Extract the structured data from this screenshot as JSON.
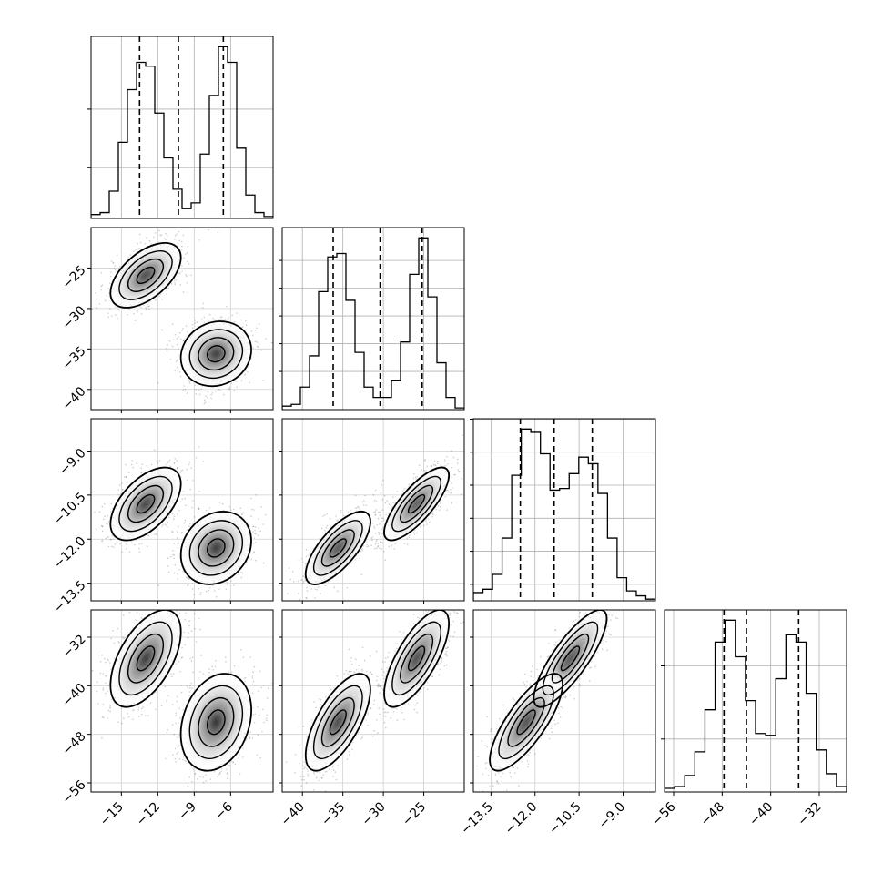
{
  "chart_data": {
    "type": "corner",
    "title": "",
    "variables": [
      {
        "index": 0,
        "range": [
          -17.5,
          -2.5
        ],
        "ticks": [
          -15,
          -12,
          -9,
          -6
        ],
        "tick_labels": [
          "−15",
          "−12",
          "−9",
          "−6"
        ],
        "quantiles": [
          -13.5,
          -10.3,
          -6.6
        ]
      },
      {
        "index": 1,
        "range": [
          -42.5,
          -20.0
        ],
        "ticks": [
          -40,
          -35,
          -30,
          -25
        ],
        "tick_labels": [
          "−40",
          "−35",
          "−30",
          "−25"
        ],
        "quantiles": [
          -36.2,
          -30.4,
          -25.2
        ]
      },
      {
        "index": 2,
        "range": [
          -14.1,
          -7.9
        ],
        "ticks": [
          -13.5,
          -12.0,
          -10.5,
          -9.0
        ],
        "tick_labels": [
          "−13.5",
          "−12.0",
          "−10.5",
          "−9.0"
        ],
        "quantiles": [
          -12.5,
          -11.35,
          -10.05
        ]
      },
      {
        "index": 3,
        "range": [
          -57.5,
          -27.5
        ],
        "ticks": [
          -56,
          -48,
          -40,
          -32
        ],
        "tick_labels": [
          "−56",
          "−48",
          "−40",
          "−32"
        ],
        "quantiles": [
          -47.7,
          -44.0,
          -35.4
        ]
      }
    ],
    "histograms": [
      {
        "variable": 0,
        "counts": [
          0.2,
          0.3,
          1.4,
          3.9,
          6.6,
          8.0,
          7.8,
          5.4,
          3.1,
          1.5,
          0.5,
          0.8,
          3.3,
          6.3,
          8.8,
          8.0,
          3.6,
          1.2,
          0.3,
          0.1
        ]
      },
      {
        "variable": 1,
        "counts": [
          0.2,
          0.3,
          1.3,
          3.1,
          6.8,
          8.8,
          9.0,
          6.3,
          3.3,
          1.3,
          0.7,
          0.7,
          1.7,
          3.9,
          7.8,
          9.9,
          6.5,
          2.7,
          0.7,
          0.1
        ]
      },
      {
        "variable": 2,
        "counts": [
          0.5,
          0.7,
          1.6,
          3.8,
          7.6,
          10.4,
          10.2,
          8.9,
          6.7,
          6.8,
          7.7,
          8.7,
          8.3,
          6.5,
          3.8,
          1.4,
          0.6,
          0.3,
          0.1
        ]
      },
      {
        "variable": 3,
        "counts": [
          0.2,
          0.3,
          0.9,
          2.2,
          4.5,
          8.2,
          9.4,
          7.4,
          5.0,
          3.2,
          3.1,
          6.2,
          8.6,
          8.2,
          5.4,
          2.3,
          1.0,
          0.3
        ]
      }
    ],
    "histogram_y_ticks": [
      {
        "variable": 0,
        "values": [
          2.6,
          5.6
        ]
      },
      {
        "variable": 1,
        "values": [
          2.2,
          3.8,
          5.4,
          7.0,
          8.6
        ]
      },
      {
        "variable": 2,
        "values": [
          1.0,
          3.0,
          5.0,
          7.0,
          9.0,
          11.0
        ]
      },
      {
        "variable": 3,
        "values": [
          2.9,
          6.9
        ]
      }
    ],
    "clusters": [
      {
        "mean": [
          -13.0,
          -25.9,
          -10.8,
          -35.5
        ],
        "sd": [
          1.45,
          2.0,
          0.62,
          4.0
        ],
        "corr": [
          [
            1.0,
            0.55,
            0.55,
            0.55
          ],
          [
            0.55,
            1.0,
            0.78,
            0.72
          ],
          [
            0.55,
            0.78,
            1.0,
            0.82
          ],
          [
            0.55,
            0.72,
            0.82,
            1.0
          ]
        ]
      },
      {
        "mean": [
          -7.2,
          -35.6,
          -12.3,
          -46.0
        ],
        "sd": [
          1.45,
          2.0,
          0.62,
          4.0
        ],
        "corr": [
          [
            1.0,
            0.12,
            0.2,
            0.25
          ],
          [
            0.12,
            1.0,
            0.72,
            0.68
          ],
          [
            0.2,
            0.72,
            1.0,
            0.78
          ],
          [
            0.25,
            0.68,
            0.78,
            1.0
          ]
        ]
      }
    ],
    "contour_levels_sigma": [
      0.5,
      1.0,
      1.5,
      2.0
    ]
  }
}
